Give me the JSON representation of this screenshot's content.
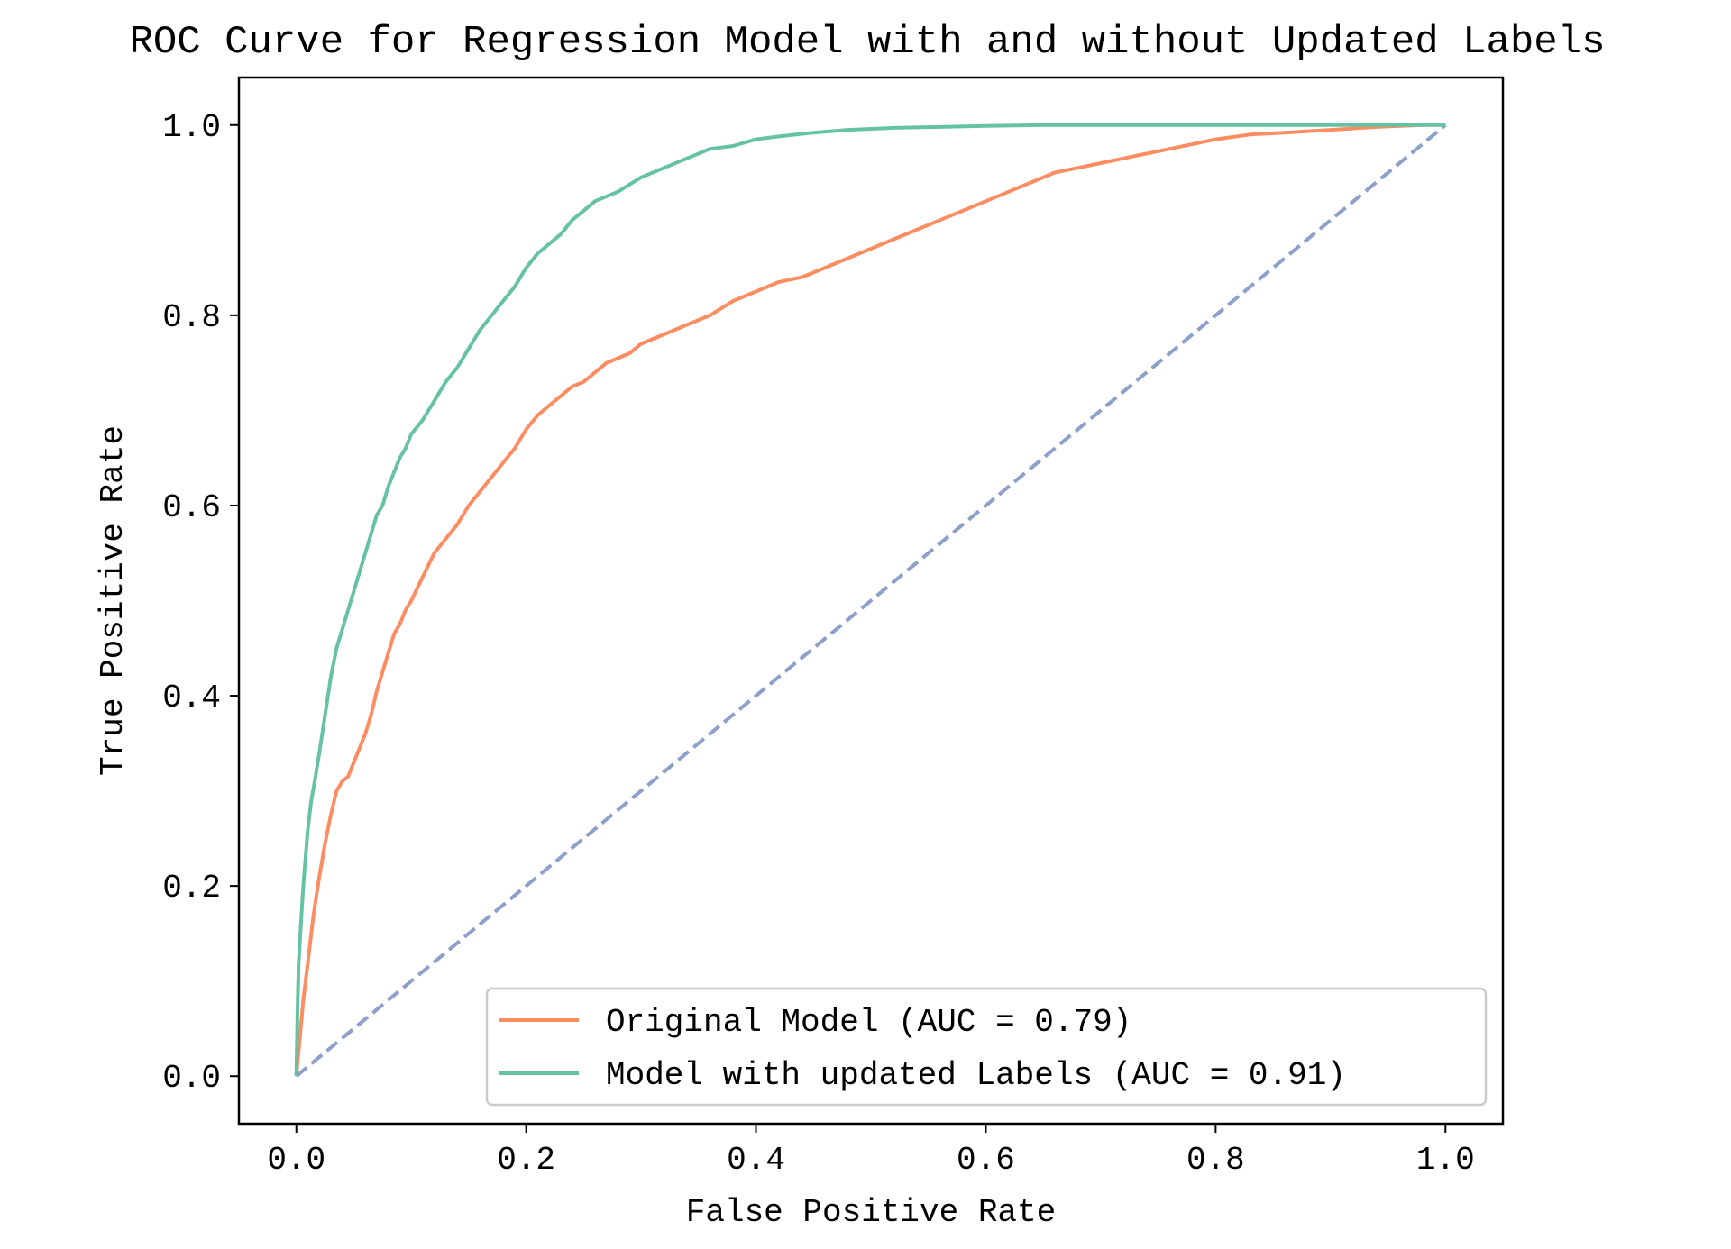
{
  "chart_data": {
    "type": "line",
    "title": "ROC Curve for Regression Model with and without Updated Labels",
    "xlabel": "False Positive Rate",
    "ylabel": "True Positive Rate",
    "xlim": [
      -0.05,
      1.05
    ],
    "ylim": [
      -0.05,
      1.05
    ],
    "xticks": [
      0.0,
      0.2,
      0.4,
      0.6,
      0.8,
      1.0
    ],
    "yticks": [
      0.0,
      0.2,
      0.4,
      0.6,
      0.8,
      1.0
    ],
    "xtick_labels": [
      "0.0",
      "0.2",
      "0.4",
      "0.6",
      "0.8",
      "1.0"
    ],
    "ytick_labels": [
      "0.0",
      "0.2",
      "0.4",
      "0.6",
      "0.8",
      "1.0"
    ],
    "grid": false,
    "legend_position": "lower-right",
    "series": [
      {
        "name": "Original Model (AUC = 0.79)",
        "color": "#fc8d62",
        "style": "solid",
        "x": [
          0.0,
          0.003,
          0.006,
          0.01,
          0.015,
          0.02,
          0.025,
          0.03,
          0.035,
          0.04,
          0.045,
          0.05,
          0.055,
          0.06,
          0.065,
          0.07,
          0.075,
          0.08,
          0.085,
          0.09,
          0.095,
          0.1,
          0.11,
          0.12,
          0.13,
          0.14,
          0.15,
          0.16,
          0.17,
          0.18,
          0.19,
          0.2,
          0.21,
          0.22,
          0.23,
          0.24,
          0.25,
          0.26,
          0.27,
          0.28,
          0.29,
          0.3,
          0.32,
          0.34,
          0.36,
          0.38,
          0.4,
          0.42,
          0.44,
          0.46,
          0.48,
          0.5,
          0.52,
          0.54,
          0.56,
          0.58,
          0.6,
          0.62,
          0.64,
          0.66,
          0.68,
          0.7,
          0.72,
          0.74,
          0.76,
          0.78,
          0.8,
          0.83,
          0.86,
          0.9,
          0.94,
          0.98,
          1.0
        ],
        "y": [
          0.0,
          0.04,
          0.08,
          0.12,
          0.17,
          0.21,
          0.245,
          0.275,
          0.3,
          0.31,
          0.315,
          0.33,
          0.345,
          0.36,
          0.38,
          0.405,
          0.425,
          0.445,
          0.465,
          0.475,
          0.49,
          0.5,
          0.525,
          0.55,
          0.565,
          0.58,
          0.6,
          0.615,
          0.63,
          0.645,
          0.66,
          0.68,
          0.695,
          0.705,
          0.715,
          0.725,
          0.73,
          0.74,
          0.75,
          0.755,
          0.76,
          0.77,
          0.78,
          0.79,
          0.8,
          0.815,
          0.825,
          0.835,
          0.84,
          0.85,
          0.86,
          0.87,
          0.88,
          0.89,
          0.9,
          0.91,
          0.92,
          0.93,
          0.94,
          0.95,
          0.955,
          0.96,
          0.965,
          0.97,
          0.975,
          0.98,
          0.985,
          0.99,
          0.992,
          0.995,
          0.998,
          1.0,
          1.0
        ]
      },
      {
        "name": "Model with updated Labels (AUC = 0.91)",
        "color": "#66c2a5",
        "style": "solid",
        "x": [
          0.0,
          0.001,
          0.002,
          0.004,
          0.006,
          0.008,
          0.01,
          0.013,
          0.016,
          0.02,
          0.025,
          0.03,
          0.035,
          0.04,
          0.045,
          0.05,
          0.055,
          0.06,
          0.065,
          0.07,
          0.075,
          0.08,
          0.085,
          0.09,
          0.095,
          0.1,
          0.11,
          0.12,
          0.13,
          0.14,
          0.15,
          0.16,
          0.17,
          0.18,
          0.19,
          0.2,
          0.21,
          0.22,
          0.23,
          0.24,
          0.25,
          0.26,
          0.28,
          0.3,
          0.32,
          0.34,
          0.36,
          0.38,
          0.4,
          0.42,
          0.45,
          0.48,
          0.52,
          0.56,
          0.6,
          0.65,
          0.7,
          0.8,
          0.9,
          1.0
        ],
        "y": [
          0.0,
          0.07,
          0.12,
          0.16,
          0.2,
          0.23,
          0.26,
          0.29,
          0.31,
          0.34,
          0.38,
          0.42,
          0.45,
          0.47,
          0.49,
          0.51,
          0.53,
          0.55,
          0.57,
          0.59,
          0.6,
          0.62,
          0.635,
          0.65,
          0.66,
          0.675,
          0.69,
          0.71,
          0.73,
          0.745,
          0.765,
          0.785,
          0.8,
          0.815,
          0.83,
          0.85,
          0.865,
          0.875,
          0.885,
          0.9,
          0.91,
          0.92,
          0.93,
          0.945,
          0.955,
          0.965,
          0.975,
          0.978,
          0.985,
          0.988,
          0.992,
          0.995,
          0.997,
          0.998,
          0.999,
          1.0,
          1.0,
          1.0,
          1.0,
          1.0
        ]
      },
      {
        "name": "",
        "color": "#8da0cb",
        "style": "dashed",
        "x": [
          0.0,
          1.0
        ],
        "y": [
          0.0,
          1.0
        ]
      }
    ]
  }
}
